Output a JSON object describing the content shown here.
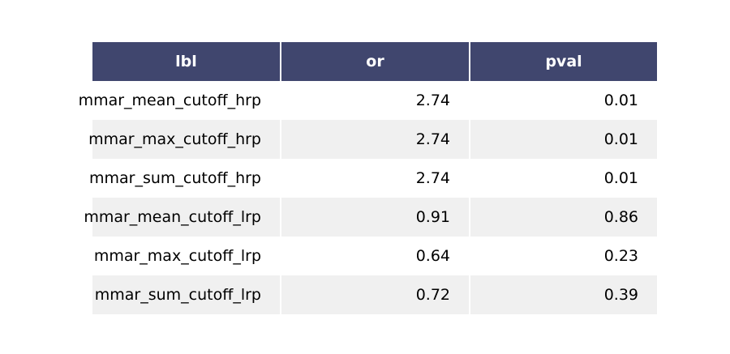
{
  "colors": {
    "header_bg": "#40466e",
    "header_text": "#ffffff",
    "row_even_bg": "#ffffff",
    "row_odd_bg": "#f0f0f0",
    "grid_line": "#ffffff"
  },
  "chart_data": {
    "type": "table",
    "columns": [
      "lbl",
      "or",
      "pval"
    ],
    "rows": [
      [
        "mmar_mean_cutoff_hrp",
        "2.74",
        "0.01"
      ],
      [
        "mmar_max_cutoff_hrp",
        "2.74",
        "0.01"
      ],
      [
        "mmar_sum_cutoff_hrp",
        "2.74",
        "0.01"
      ],
      [
        "mmar_mean_cutoff_lrp",
        "0.91",
        "0.86"
      ],
      [
        "mmar_max_cutoff_lrp",
        "0.64",
        "0.23"
      ],
      [
        "mmar_sum_cutoff_lrp",
        "0.72",
        "0.39"
      ]
    ]
  }
}
